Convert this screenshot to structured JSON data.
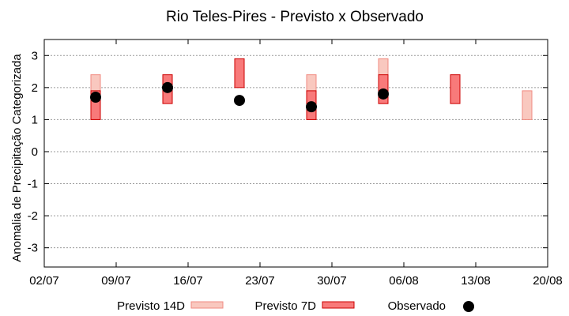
{
  "chart_data": {
    "type": "range-bar-scatter",
    "title": "Rio Teles-Pires - Previsto x Observado",
    "xlabel": "",
    "ylabel": "Anomalia de Precipitação Categorizada",
    "x_ticks": [
      "02/07",
      "09/07",
      "16/07",
      "23/07",
      "30/07",
      "06/08",
      "13/08",
      "20/08"
    ],
    "xlim_days": [
      0,
      49
    ],
    "ylim": [
      -3.6,
      3.5
    ],
    "y_ticks": [
      -3,
      -2,
      -1,
      0,
      1,
      2,
      3
    ],
    "grid": true,
    "legend_position": "bottom",
    "series": [
      {
        "name": "Previsto 14D",
        "kind": "range-bar",
        "fill": "#f9c8bf",
        "stroke": "#f08a80",
        "points": [
          {
            "day": 5,
            "low": 1,
            "high": 2.4
          },
          {
            "day": 26,
            "low": 1,
            "high": 2.4
          },
          {
            "day": 33,
            "low": 1.5,
            "high": 2.9
          },
          {
            "day": 47,
            "low": 1,
            "high": 1.9
          }
        ]
      },
      {
        "name": "Previsto 7D",
        "kind": "range-bar",
        "fill": "#f87a7a",
        "stroke": "#cc0000",
        "points": [
          {
            "day": 5,
            "low": 1,
            "high": 1.9
          },
          {
            "day": 12,
            "low": 1.5,
            "high": 2.4
          },
          {
            "day": 19,
            "low": 2,
            "high": 2.9
          },
          {
            "day": 26,
            "low": 1,
            "high": 1.9
          },
          {
            "day": 33,
            "low": 1.5,
            "high": 2.4
          },
          {
            "day": 40,
            "low": 1.5,
            "high": 2.4
          }
        ]
      },
      {
        "name": "Observado",
        "kind": "scatter",
        "color": "#000000",
        "points": [
          {
            "day": 5,
            "value": 1.7
          },
          {
            "day": 12,
            "value": 2.0
          },
          {
            "day": 19,
            "value": 1.6
          },
          {
            "day": 26,
            "value": 1.4
          },
          {
            "day": 33,
            "value": 1.8
          }
        ]
      }
    ]
  }
}
